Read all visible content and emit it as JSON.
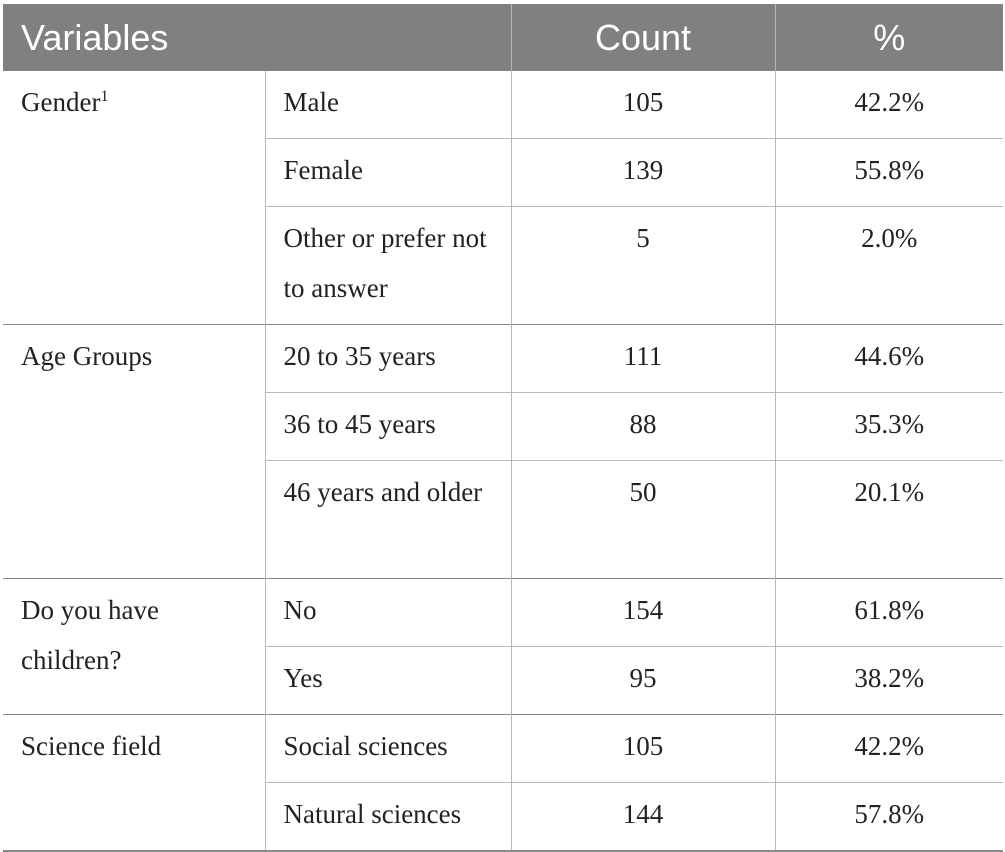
{
  "table": {
    "headers": {
      "variables": "Variables",
      "count": "Count",
      "percent": "%"
    },
    "groups": [
      {
        "variable": "Gender",
        "footnote": "1",
        "rows": [
          {
            "category": "Male",
            "count": "105",
            "percent": "42.2%"
          },
          {
            "category": "Female",
            "count": "139",
            "percent": "55.8%"
          },
          {
            "category": "Other or prefer not to answer",
            "count": "5",
            "percent": "2.0%"
          }
        ]
      },
      {
        "variable": "Age Groups",
        "rows": [
          {
            "category": "20 to 35 years",
            "count": "111",
            "percent": "44.6%"
          },
          {
            "category": "36 to 45 years",
            "count": "88",
            "percent": "35.3%"
          },
          {
            "category": "46 years and older",
            "count": "50",
            "percent": "20.1%"
          }
        ]
      },
      {
        "variable": "Do you have children?",
        "rows": [
          {
            "category": "No",
            "count": "154",
            "percent": "61.8%"
          },
          {
            "category": "Yes",
            "count": "95",
            "percent": "38.2%"
          }
        ]
      },
      {
        "variable": "Science field",
        "rows": [
          {
            "category": "Social sciences",
            "count": "105",
            "percent": "42.2%"
          },
          {
            "category": "Natural sciences",
            "count": "144",
            "percent": "57.8%"
          }
        ]
      }
    ]
  }
}
